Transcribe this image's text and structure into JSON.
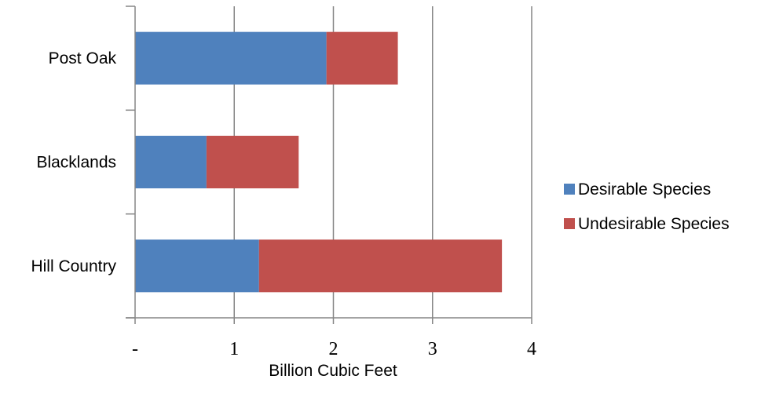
{
  "chart_data": {
    "type": "bar",
    "orientation": "horizontal",
    "stacked": true,
    "title": "",
    "xlabel": "Billion Cubic Feet",
    "ylabel": "",
    "categories": [
      "Post Oak",
      "Blacklands",
      "Hill Country"
    ],
    "series": [
      {
        "name": "Desirable Species",
        "color": "#4f81bd",
        "values": [
          1.93,
          0.72,
          1.25
        ]
      },
      {
        "name": "Undesirable Species",
        "color": "#c0504d",
        "values": [
          0.72,
          0.93,
          2.45
        ]
      }
    ],
    "xlim": [
      0,
      4
    ],
    "x_ticks": [
      {
        "value": 0,
        "label": "-"
      },
      {
        "value": 1,
        "label": "1"
      },
      {
        "value": 2,
        "label": "2"
      },
      {
        "value": 3,
        "label": "3"
      },
      {
        "value": 4,
        "label": "4"
      }
    ],
    "grid": "vertical",
    "legend": "right"
  }
}
